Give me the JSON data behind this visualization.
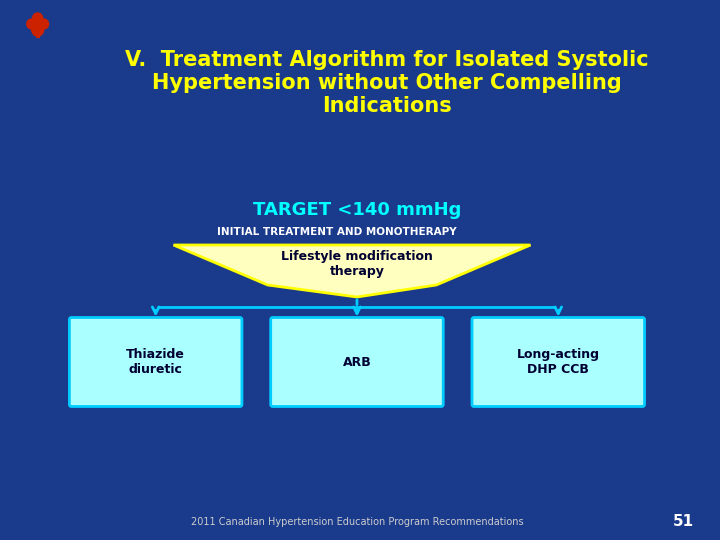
{
  "bg_color": "#1a3a8c",
  "title_text": "V.  Treatment Algorithm for Isolated Systolic\nHypertension without Other Compelling\nIndications",
  "title_color": "#ffff00",
  "title_fontsize": 15,
  "target_text": "TARGET <140 mmHg",
  "target_color": "#00ffff",
  "target_fontsize": 13,
  "initial_text": "INITIAL TREATMENT AND MONOTHERAPY",
  "initial_color": "#ffffff",
  "initial_fontsize": 7.5,
  "lifestyle_text": "Lifestyle modification\ntherapy",
  "lifestyle_box_fill": "#ffffc0",
  "lifestyle_box_edge": "#ffff00",
  "box_texts": [
    "Thiazide\ndiuretic",
    "ARB",
    "Long-acting\nDHP CCB"
  ],
  "box_fill": "#aaffff",
  "box_edge": "#00ccff",
  "box_text_color": "#000033",
  "arrow_color": "#00ccff",
  "footer_text": "2011 Canadian Hypertension Education Program Recommendations",
  "footer_color": "#cccccc",
  "footer_fontsize": 7,
  "page_num": "51",
  "page_color": "#ffffff",
  "page_fontsize": 11
}
